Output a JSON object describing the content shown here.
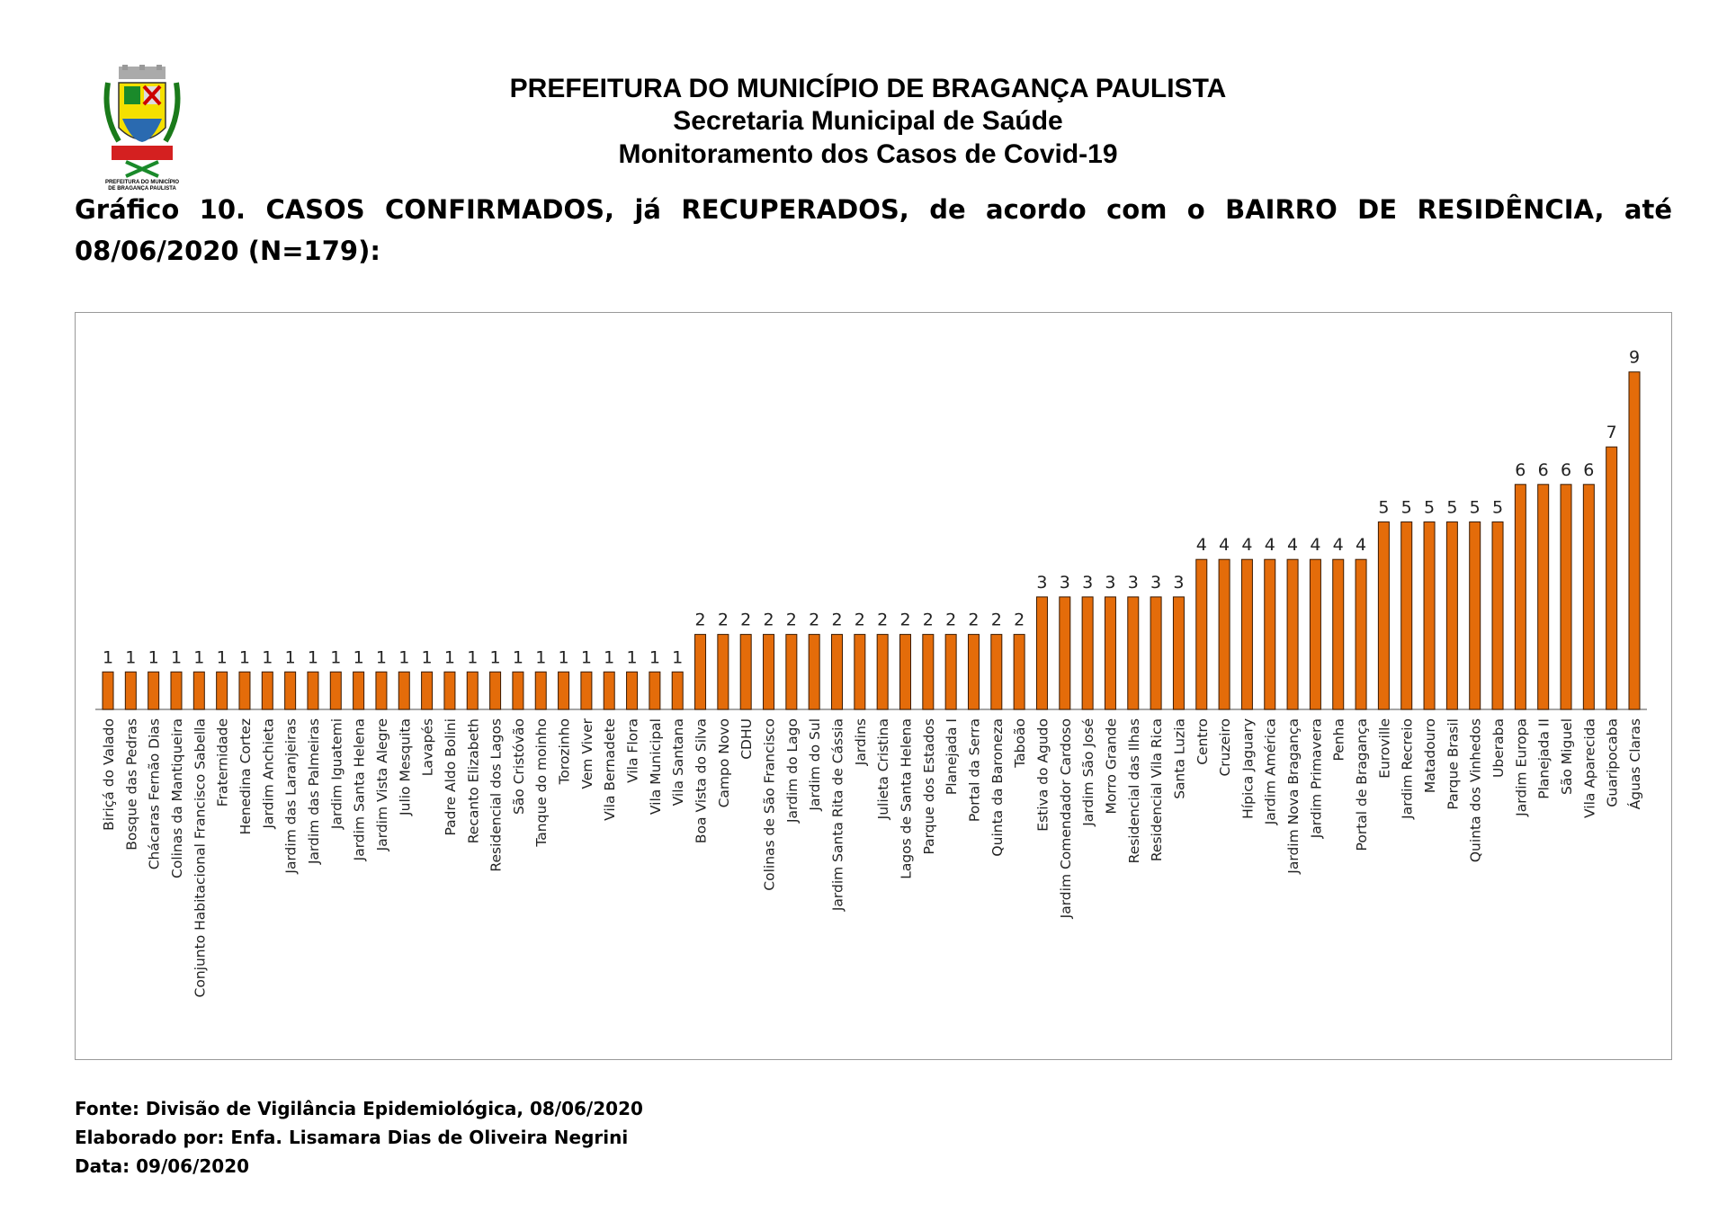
{
  "header": {
    "line1": "PREFEITURA DO MUNICÍPIO DE BRAGANÇA PAULISTA",
    "line2": "Secretaria Municipal de Saúde",
    "line3": "Monitoramento dos Casos de Covid-19",
    "logo_text": "PREFEITURA DO MUNICÍPIO DE BRAGANÇA PAULISTA"
  },
  "heading": "Gráfico 10. CASOS CONFIRMADOS, já RECUPERADOS, de acordo com o BAIRRO DE RESIDÊNCIA, até 08/06/2020 (N=179):",
  "footer": {
    "source": "Fonte: Divisão de Vigilância Epidemiológica, 08/06/2020",
    "author": "Elaborado por: Enfa. Lisamara Dias de Oliveira Negrini",
    "date": "Data: 09/06/2020"
  },
  "colors": {
    "bar": "#E46C0A",
    "bar_outline": "#3a1a00"
  },
  "chart_data": {
    "type": "bar",
    "title": "",
    "xlabel": "",
    "ylabel": "",
    "ylim": [
      0,
      10
    ],
    "grid": false,
    "legend": "none",
    "data_labels": true,
    "categories": [
      "Biriçá do Valado",
      "Bosque das Pedras",
      "Chácaras Fernão Dias",
      "Colinas da Mantiqueira",
      "Conjunto Habitacional Francisco Sabella",
      "Fraternidade",
      "Henedina Cortez",
      "Jardim Anchieta",
      "Jardim das Laranjeiras",
      "Jardim das Palmeiras",
      "Jardim Iguatemi",
      "Jardim Santa Helena",
      "Jardim Vista Alegre",
      "Julio Mesquita",
      "Lavapés",
      "Padre Aldo Bolini",
      "Recanto Elizabeth",
      "Residencial dos Lagos",
      "São Cristóvão",
      "Tanque do moinho",
      "Torozinho",
      "Vem Viver",
      "Vila Bernadete",
      "Vila Flora",
      "Vila Municipal",
      "Vila Santana",
      "Boa Vista do Silva",
      "Campo Novo",
      "CDHU",
      "Colinas de São Francisco",
      "Jardim do Lago",
      "Jardim do Sul",
      "Jardim Santa Rita de Cássia",
      "Jardins",
      "Julieta Cristina",
      "Lagos de Santa Helena",
      "Parque dos Estados",
      "Planejada I",
      "Portal da Serra",
      "Quinta da Baroneza",
      "Taboão",
      "Estiva do Agudo",
      "Jardim Comendador Cardoso",
      "Jardim São José",
      "Morro Grande",
      "Residencial das Ilhas",
      "Residencial Vila Rica",
      "Santa Luzia",
      "Centro",
      "Cruzeiro",
      "Hípica Jaguary",
      "Jardim América",
      "Jardim Nova Bragança",
      "Jardim Primavera",
      "Penha",
      "Portal de Bragança",
      "Euroville",
      "Jardim Recreio",
      "Matadouro",
      "Parque Brasil",
      "Quinta dos Vinhedos",
      "Uberaba",
      "Jardim Europa",
      "Planejada II",
      "São Miguel",
      "Vila Aparecida",
      "Guaripocaba",
      "Águas Claras"
    ],
    "values": [
      1,
      1,
      1,
      1,
      1,
      1,
      1,
      1,
      1,
      1,
      1,
      1,
      1,
      1,
      1,
      1,
      1,
      1,
      1,
      1,
      1,
      1,
      1,
      1,
      1,
      1,
      2,
      2,
      2,
      2,
      2,
      2,
      2,
      2,
      2,
      2,
      2,
      2,
      2,
      2,
      2,
      3,
      3,
      3,
      3,
      3,
      3,
      3,
      4,
      4,
      4,
      4,
      4,
      4,
      4,
      4,
      5,
      5,
      5,
      5,
      5,
      5,
      6,
      6,
      6,
      6,
      7,
      9
    ]
  }
}
